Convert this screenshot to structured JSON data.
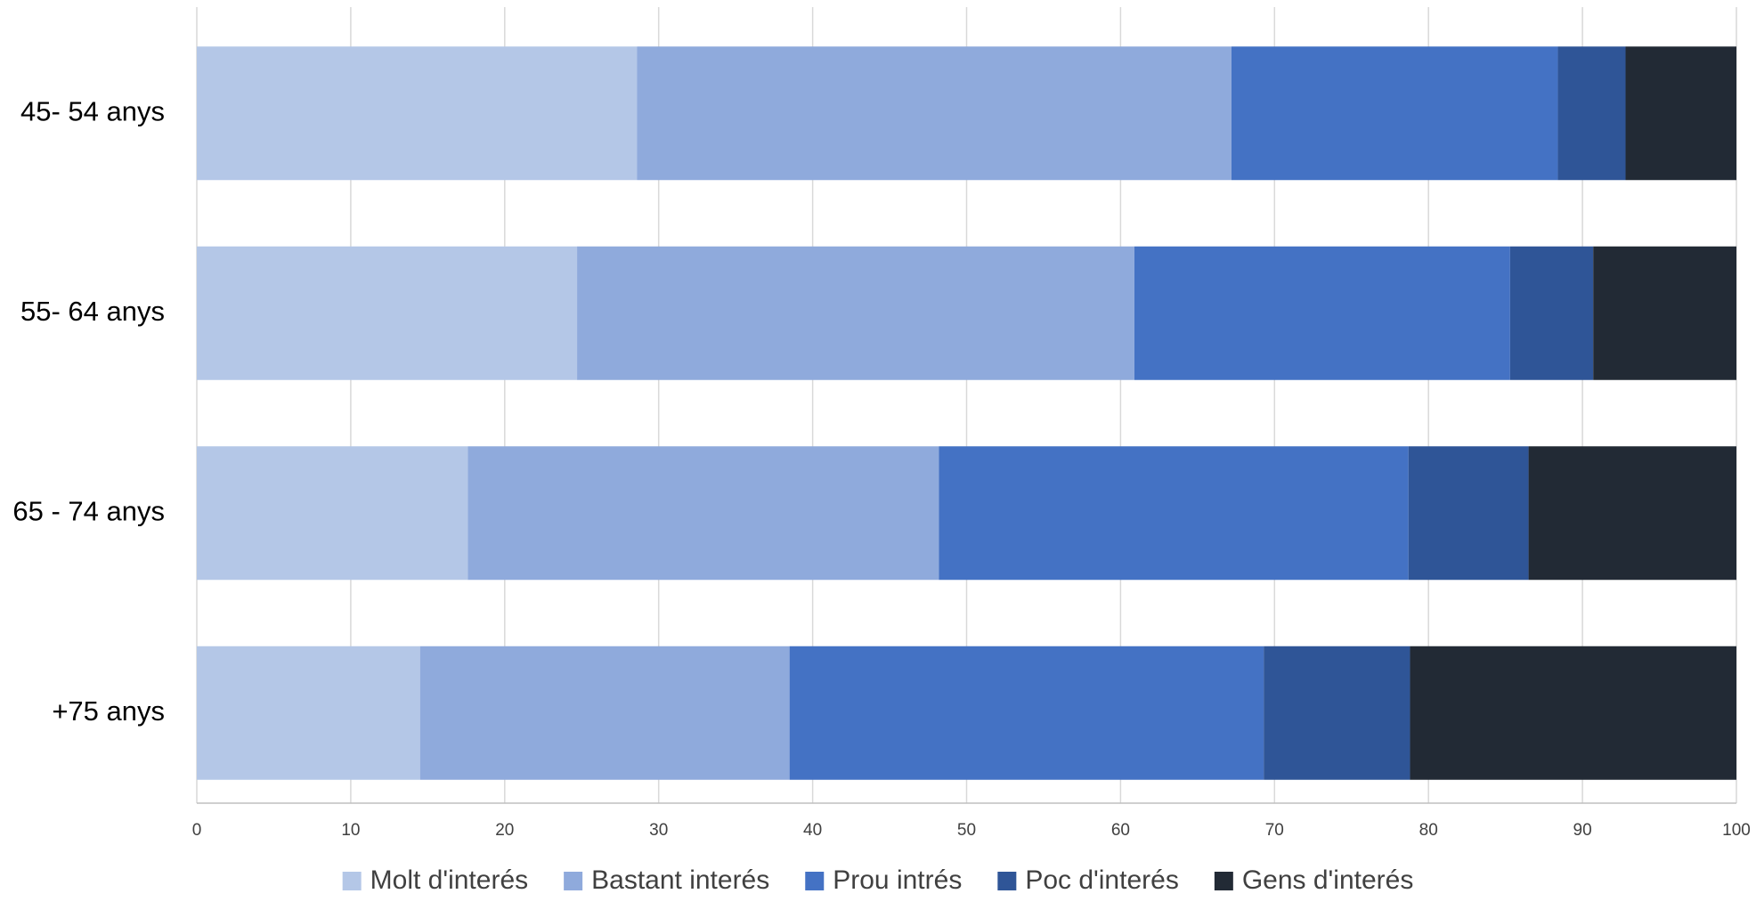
{
  "chart_data": {
    "type": "bar",
    "orientation": "horizontal",
    "stacked": true,
    "title": "",
    "xlabel": "",
    "ylabel": "",
    "categories": [
      "45- 54 anys",
      "55- 64 anys",
      "65 - 74 anys",
      "+75 anys"
    ],
    "series": [
      {
        "name": "Molt d'interés",
        "color": "#b4c7e7",
        "values": [
          28.6,
          24.7,
          17.6,
          14.5
        ]
      },
      {
        "name": "Bastant interés",
        "color": "#8faadc",
        "values": [
          38.6,
          36.2,
          30.6,
          24.0
        ]
      },
      {
        "name": "Prou intrés",
        "color": "#4472c4",
        "values": [
          21.2,
          24.4,
          30.5,
          30.8
        ]
      },
      {
        "name": "Poc d'interés",
        "color": "#2f5597",
        "values": [
          4.4,
          5.4,
          7.8,
          9.5
        ]
      },
      {
        "name": "Gens d'interés",
        "color": "#222a35",
        "values": [
          7.2,
          9.3,
          13.5,
          21.2
        ]
      }
    ],
    "xlim": [
      0,
      100
    ],
    "xticks": [
      0,
      10,
      20,
      30,
      40,
      50,
      60,
      70,
      80,
      90,
      100
    ],
    "grid": true,
    "legend_position": "bottom"
  }
}
